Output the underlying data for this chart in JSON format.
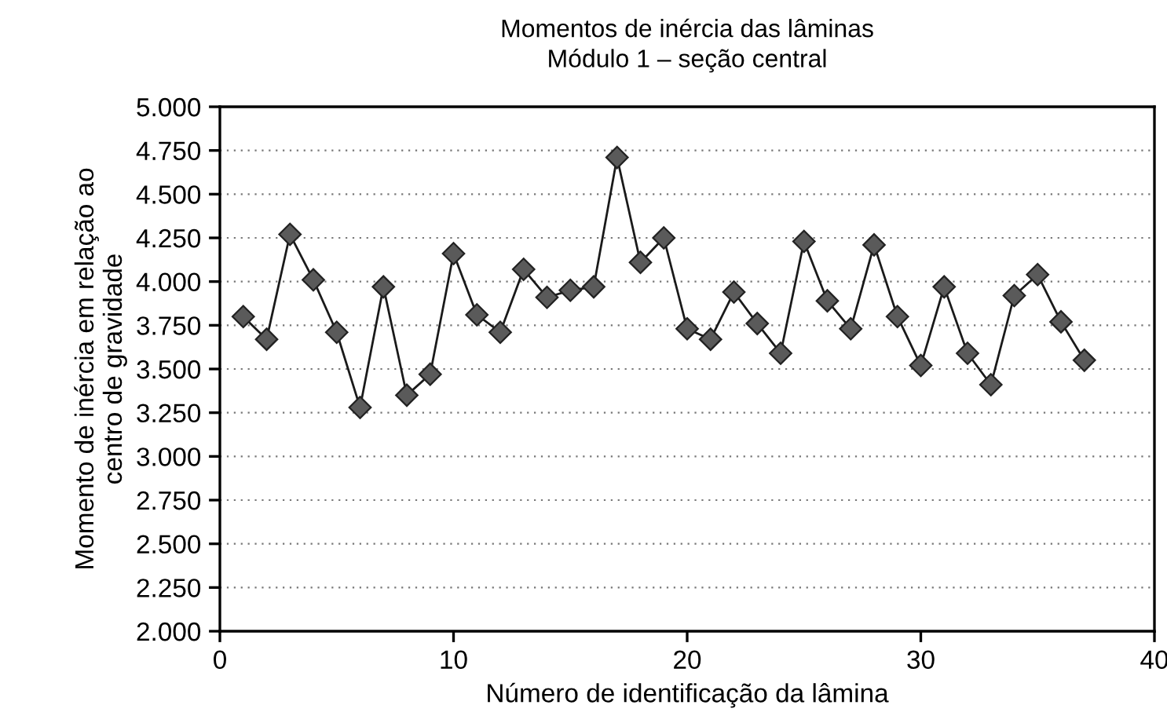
{
  "chart_data": {
    "type": "line",
    "title": "Momentos de inércia das lâminas",
    "subtitle": "Módulo 1 – seção central",
    "xlabel": "Número de identificação da lâmina",
    "ylabel": "Momento de inércia em relação ao\ncentro de gravidade",
    "x": [
      1,
      2,
      3,
      4,
      5,
      6,
      7,
      8,
      9,
      10,
      11,
      12,
      13,
      14,
      15,
      16,
      17,
      18,
      19,
      20,
      21,
      22,
      23,
      24,
      25,
      26,
      27,
      28,
      29,
      30,
      31,
      32,
      33,
      34,
      35,
      36,
      37
    ],
    "series": [
      {
        "color": "#5a5a5a",
        "values": [
          3800,
          3670,
          4270,
          4010,
          3710,
          3280,
          3970,
          3350,
          3470,
          4160,
          3810,
          3710,
          4070,
          3910,
          3950,
          3970,
          4710,
          4110,
          4250,
          3730,
          3670,
          3940,
          3760,
          3590,
          4230,
          3890,
          3730,
          4210,
          3800,
          3520,
          3970,
          3590,
          3410,
          3920,
          4040,
          3770,
          3550
        ]
      }
    ],
    "xlim": [
      0,
      40
    ],
    "xticks": [
      0,
      10,
      20,
      30,
      40
    ],
    "ylim": [
      2000,
      5000
    ],
    "yticks": [
      {
        "value": 2000,
        "label": "2.000"
      },
      {
        "value": 2250,
        "label": "2.250"
      },
      {
        "value": 2500,
        "label": "2.500"
      },
      {
        "value": 2750,
        "label": "2.750"
      },
      {
        "value": 3000,
        "label": "3.000"
      },
      {
        "value": 3250,
        "label": "3.250"
      },
      {
        "value": 3500,
        "label": "3.500"
      },
      {
        "value": 3750,
        "label": "3.750"
      },
      {
        "value": 4000,
        "label": "4.000"
      },
      {
        "value": 4250,
        "label": "4.250"
      },
      {
        "value": 4500,
        "label": "4.500"
      },
      {
        "value": 4750,
        "label": "4.750"
      },
      {
        "value": 5000,
        "label": "5.000"
      }
    ],
    "grid": "y",
    "marker": "diamond",
    "line_style": "solid",
    "legend": false
  }
}
